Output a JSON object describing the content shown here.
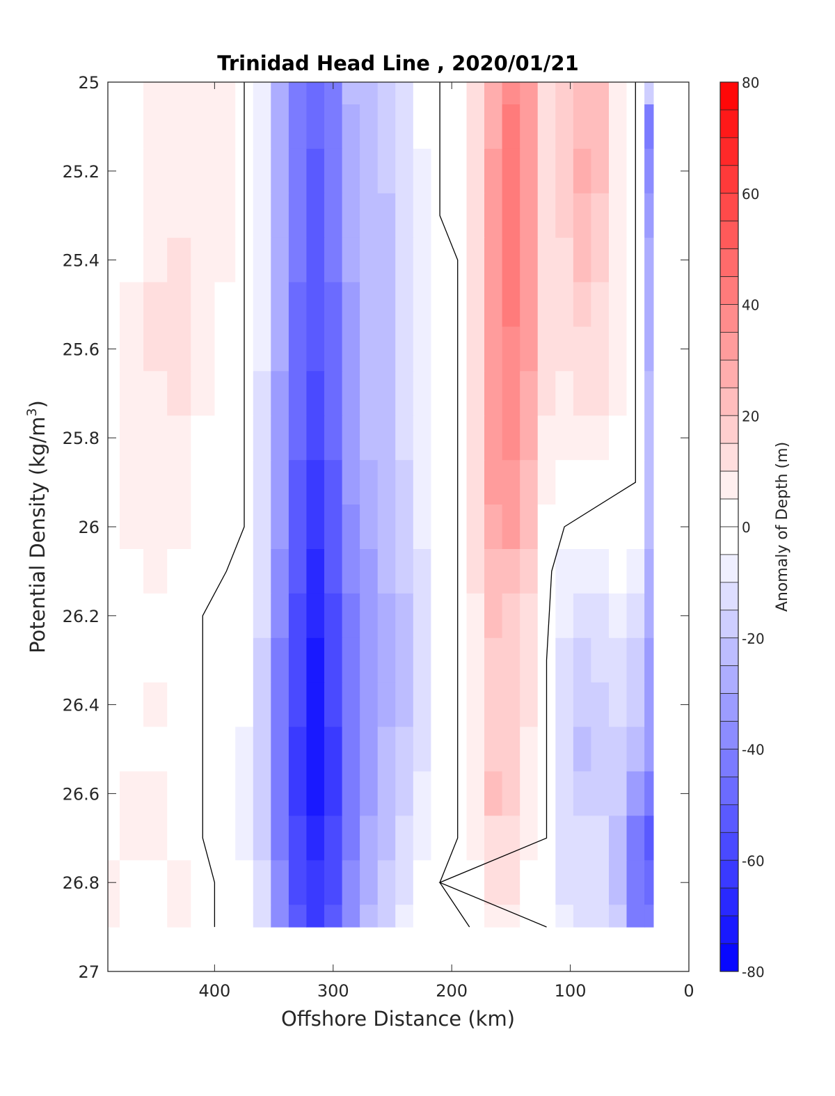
{
  "chart_data": {
    "type": "heatmap",
    "subtype": "filled-contour",
    "title": "Trinidad Head Line , 2020/01/21",
    "xlabel": "Offshore Distance (km)",
    "ylabel": "Potential Density (kg/m",
    "ylabel_sup": "3",
    "ylabel_end": ")",
    "xlim": [
      490,
      0
    ],
    "ylim": [
      25,
      27
    ],
    "x_reversed": true,
    "y_reversed": true,
    "xticks": [
      400,
      300,
      200,
      100,
      0
    ],
    "xtick_labels": [
      "400",
      "300",
      "200",
      "100",
      "0"
    ],
    "yticks": [
      25,
      25.2,
      25.4,
      25.6,
      25.8,
      26,
      26.2,
      26.4,
      26.6,
      26.8,
      27
    ],
    "ytick_labels": [
      "25",
      "25.2",
      "25.4",
      "25.6",
      "25.8",
      "26",
      "26.2",
      "26.4",
      "26.6",
      "26.8",
      "27"
    ],
    "data_extent": {
      "x": [
        490,
        30
      ],
      "y": [
        25,
        26.9
      ]
    },
    "colorbar": {
      "label": "Anomaly of Depth (m)",
      "range": [
        -80,
        80
      ],
      "step": 5,
      "ticks": [
        80,
        60,
        40,
        20,
        0,
        -20,
        -40,
        -60,
        -80
      ],
      "tick_labels": [
        "80",
        "60",
        "40",
        "20",
        "0",
        "-20",
        "-40",
        "-60",
        "-80"
      ],
      "negative_color": "#0000ff",
      "positive_color": "#ff0000",
      "zero_color": "#ffffff"
    },
    "zero_contour_color": "#000000",
    "rows_y": [
      25.0,
      25.1,
      25.2,
      25.3,
      25.4,
      25.5,
      25.6,
      25.7,
      25.8,
      25.9,
      26.0,
      26.1,
      26.2,
      26.3,
      26.4,
      26.5,
      26.6,
      26.7,
      26.8,
      26.9
    ],
    "cols_x": [
      490,
      470,
      450,
      430,
      410,
      390,
      375,
      360,
      345,
      330,
      315,
      300,
      285,
      270,
      255,
      240,
      225,
      210,
      195,
      180,
      165,
      150,
      135,
      120,
      105,
      90,
      75,
      60,
      45,
      30
    ],
    "grid": [
      [
        4,
        4,
        5,
        6,
        9,
        6,
        0,
        -6,
        -26,
        -40,
        -46,
        -40,
        -24,
        -20,
        -18,
        -10,
        -4,
        0,
        0,
        12,
        26,
        36,
        30,
        14,
        18,
        22,
        20,
        8,
        0,
        -15
      ],
      [
        4,
        4,
        5,
        6,
        9,
        6,
        0,
        -7,
        -27,
        -42,
        -48,
        -42,
        -26,
        -20,
        -18,
        -11,
        -4,
        0,
        0,
        12,
        28,
        40,
        32,
        14,
        18,
        24,
        20,
        8,
        0,
        -40
      ],
      [
        4,
        4,
        5,
        6,
        9,
        6,
        0,
        -7,
        -28,
        -44,
        -50,
        -44,
        -28,
        -22,
        -19,
        -12,
        -5,
        0,
        0,
        13,
        30,
        42,
        32,
        14,
        18,
        25,
        20,
        8,
        0,
        -35
      ],
      [
        4,
        4,
        6,
        7,
        9,
        6,
        0,
        -8,
        -28,
        -44,
        -50,
        -44,
        -28,
        -22,
        -20,
        -12,
        -5,
        0,
        0,
        13,
        30,
        44,
        32,
        14,
        16,
        24,
        18,
        8,
        0,
        -30
      ],
      [
        4,
        4,
        8,
        10,
        8,
        5,
        0,
        -8,
        -28,
        -44,
        -50,
        -44,
        -28,
        -24,
        -20,
        -12,
        -6,
        -1,
        0,
        13,
        30,
        42,
        30,
        13,
        14,
        22,
        16,
        8,
        0,
        -28
      ],
      [
        4,
        5,
        10,
        11,
        8,
        4,
        0,
        -8,
        -28,
        -45,
        -52,
        -45,
        -30,
        -24,
        -20,
        -12,
        -6,
        -1,
        0,
        13,
        30,
        40,
        30,
        12,
        12,
        18,
        14,
        7,
        0,
        -26
      ],
      [
        4,
        5,
        10,
        11,
        6,
        4,
        0,
        -9,
        -28,
        -46,
        -54,
        -46,
        -30,
        -24,
        -20,
        -13,
        -6,
        -1,
        0,
        12,
        30,
        38,
        30,
        12,
        10,
        14,
        12,
        6,
        0,
        -25
      ],
      [
        4,
        5,
        9,
        10,
        5,
        3,
        0,
        -10,
        -30,
        -48,
        -56,
        -48,
        -32,
        -24,
        -20,
        -14,
        -7,
        -2,
        0,
        12,
        30,
        36,
        28,
        10,
        8,
        10,
        10,
        6,
        0,
        -24
      ],
      [
        4,
        5,
        6,
        6,
        4,
        2,
        0,
        -10,
        -30,
        -48,
        -58,
        -48,
        -32,
        -24,
        -20,
        -14,
        -7,
        -2,
        0,
        12,
        30,
        36,
        26,
        9,
        6,
        8,
        8,
        4,
        0,
        -24
      ],
      [
        2,
        5,
        5,
        6,
        4,
        2,
        0,
        -10,
        -32,
        -50,
        -62,
        -50,
        -34,
        -26,
        -22,
        -16,
        -8,
        -2,
        0,
        12,
        30,
        34,
        24,
        7,
        3,
        1,
        4,
        3,
        0,
        -24
      ],
      [
        2,
        5,
        5,
        5,
        4,
        1,
        0,
        -12,
        -34,
        -52,
        -64,
        -52,
        -36,
        -28,
        -24,
        -18,
        -9,
        -3,
        0,
        11,
        28,
        30,
        20,
        4,
        0,
        -1,
        0,
        0,
        0,
        -24
      ],
      [
        3,
        4,
        5,
        4,
        2,
        0,
        -1,
        -12,
        -36,
        -54,
        -66,
        -54,
        -38,
        -30,
        -24,
        -18,
        -10,
        -3,
        0,
        10,
        24,
        24,
        16,
        2,
        -5,
        -8,
        -6,
        -4,
        -8,
        -26
      ],
      [
        2,
        2,
        1,
        0,
        0,
        -1,
        -2,
        -14,
        -38,
        -56,
        -68,
        -56,
        -40,
        -32,
        -26,
        -20,
        -12,
        -4,
        0,
        9,
        20,
        18,
        12,
        1,
        -6,
        -10,
        -10,
        -8,
        -12,
        -28
      ],
      [
        1,
        0,
        0,
        0,
        0,
        -1,
        -4,
        -16,
        -40,
        -58,
        -72,
        -58,
        -42,
        -34,
        -26,
        -20,
        -12,
        -4,
        0,
        8,
        18,
        16,
        10,
        0,
        -10,
        -16,
        -14,
        -12,
        -16,
        -30
      ],
      [
        2,
        2,
        5,
        2,
        0,
        -1,
        -4,
        -18,
        -40,
        -58,
        -74,
        -58,
        -42,
        -34,
        -26,
        -20,
        -12,
        -4,
        0,
        8,
        18,
        18,
        10,
        0,
        -12,
        -18,
        -16,
        -14,
        -18,
        -32
      ],
      [
        1,
        2,
        2,
        0,
        0,
        -2,
        -6,
        -18,
        -42,
        -60,
        -72,
        -60,
        -42,
        -32,
        -24,
        -18,
        -10,
        -3,
        0,
        8,
        18,
        16,
        8,
        0,
        -12,
        -22,
        -18,
        -16,
        -22,
        -34
      ],
      [
        3,
        5,
        5,
        3,
        0,
        -2,
        -6,
        -18,
        -42,
        -60,
        -70,
        -60,
        -42,
        -30,
        -22,
        -16,
        -8,
        -2,
        0,
        8,
        20,
        16,
        8,
        0,
        -12,
        -18,
        -16,
        -18,
        -30,
        -40
      ],
      [
        4,
        6,
        6,
        4,
        0,
        -2,
        -5,
        -16,
        -40,
        -58,
        -66,
        -58,
        -40,
        -28,
        -20,
        -14,
        -6,
        -1,
        0,
        6,
        14,
        14,
        6,
        0,
        -10,
        -14,
        -14,
        -20,
        -40,
        -50
      ],
      [
        6,
        2,
        2,
        6,
        2,
        -2,
        -4,
        -14,
        -38,
        -56,
        -62,
        -56,
        -38,
        -26,
        -18,
        -10,
        -4,
        0,
        -2,
        4,
        10,
        10,
        4,
        0,
        -10,
        -12,
        -12,
        -20,
        -42,
        -46
      ],
      [
        6,
        2,
        2,
        6,
        2,
        -2,
        -4,
        -12,
        -36,
        -54,
        -60,
        -54,
        -36,
        -24,
        -16,
        -8,
        -4,
        -2,
        -4,
        2,
        8,
        8,
        2,
        0,
        -8,
        -10,
        -10,
        -18,
        -40,
        -44
      ]
    ]
  }
}
